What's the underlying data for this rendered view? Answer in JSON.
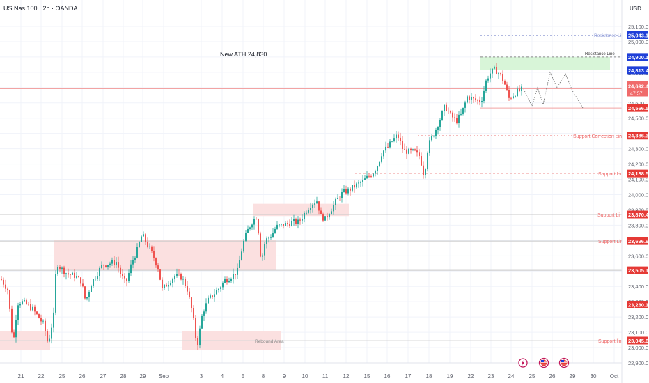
{
  "header": {
    "title": "US Nas 100 · 2h · OANDA",
    "currency": "USD"
  },
  "colors": {
    "up": "#26a69a",
    "down": "#ef5350",
    "zone_red": "#fbe0e0",
    "zone_green": "#d8f5d8",
    "label_red": "#e53935",
    "label_blue": "#1e3fd8",
    "label_price": "#f06b6b",
    "grid": "#f0f3fa",
    "axis_text": "#5d606b",
    "line_red": "#f2a3a3",
    "line_blue": "#b0b8e0"
  },
  "annotations": {
    "ath": "New ATH  24,830",
    "rebound": "Rebound Area",
    "resistance_upper": "Resistance Line",
    "resistance_lower": "Resistance Line",
    "support_correction": "Support Correction Line",
    "support_1": "Support Line",
    "support_2": "Support Line",
    "support_3": "Support Line",
    "support_4": "Support line"
  },
  "price_tags": {
    "r1": "25,043.1",
    "r2": "24,900.1",
    "r3": "24,813.4",
    "current": "24,692.4",
    "countdown": "47:57",
    "s0": "24,566.5",
    "s1": "24,386.3",
    "s2": "24,138.5",
    "s3": "23,870.4",
    "s4": "23,696.6",
    "s5": "23,505.1",
    "s6": "23,280.1",
    "s7": "23,045.6"
  },
  "events": [
    "lightning-icon",
    "us-flag-icon",
    "us-flag-icon"
  ],
  "chart_data": {
    "type": "candlestick",
    "instrument": "US Nas 100",
    "timeframe": "2h",
    "ylim": [
      22870,
      25260
    ],
    "yticks": [
      "25,100.0",
      "25,000.0",
      "24,900.0",
      "24,800.0",
      "24,700.0",
      "24,600.0",
      "24,500.0",
      "24,400.0",
      "24,300.0",
      "24,200.0",
      "24,100.0",
      "24,000.0",
      "23,900.0",
      "23,800.0",
      "23,700.0",
      "23,600.0",
      "23,500.0",
      "23,400.0",
      "23,300.0",
      "23,200.0",
      "23,100.0",
      "23,000.0",
      "22,900.0"
    ],
    "xticks": [
      "21",
      "22",
      "25",
      "26",
      "27",
      "28",
      "29",
      "Sep",
      "3",
      "4",
      "5",
      "8",
      "9",
      "10",
      "11",
      "12",
      "15",
      "16",
      "17",
      "18",
      "19",
      "22",
      "23",
      "24",
      "25",
      "26",
      "29",
      "30",
      "Oct"
    ],
    "levels": {
      "resistance_upper": 25043.1,
      "resistance_lower": 24900.1,
      "r3": 24813.4,
      "current": 24692.4,
      "s0": 24566.5,
      "s1": 24386.3,
      "s2": 24138.5,
      "s3": 23870.4,
      "s4": 23696.6,
      "s5": 23505.1,
      "s6": 23280.1,
      "s7": 23045.6
    },
    "path": [
      [
        0,
        23450
      ],
      [
        10,
        23380
      ],
      [
        18,
        23020
      ],
      [
        24,
        23290
      ],
      [
        30,
        23300
      ],
      [
        38,
        23280
      ],
      [
        46,
        23250
      ],
      [
        54,
        23200
      ],
      [
        62,
        23150
      ],
      [
        68,
        23020
      ],
      [
        76,
        23210
      ],
      [
        80,
        23560
      ],
      [
        86,
        23520
      ],
      [
        96,
        23480
      ],
      [
        106,
        23470
      ],
      [
        116,
        23430
      ],
      [
        122,
        23300
      ],
      [
        130,
        23420
      ],
      [
        138,
        23480
      ],
      [
        146,
        23540
      ],
      [
        156,
        23550
      ],
      [
        166,
        23560
      ],
      [
        174,
        23460
      ],
      [
        180,
        23420
      ],
      [
        188,
        23550
      ],
      [
        196,
        23640
      ],
      [
        203,
        23740
      ],
      [
        210,
        23680
      ],
      [
        218,
        23610
      ],
      [
        226,
        23520
      ],
      [
        232,
        23380
      ],
      [
        240,
        23420
      ],
      [
        250,
        23470
      ],
      [
        260,
        23460
      ],
      [
        268,
        23380
      ],
      [
        276,
        23210
      ],
      [
        282,
        23000
      ],
      [
        290,
        23230
      ],
      [
        298,
        23310
      ],
      [
        306,
        23350
      ],
      [
        314,
        23390
      ],
      [
        322,
        23440
      ],
      [
        330,
        23460
      ],
      [
        340,
        23500
      ],
      [
        348,
        23680
      ],
      [
        356,
        23780
      ],
      [
        362,
        23830
      ],
      [
        368,
        23860
      ],
      [
        374,
        23560
      ],
      [
        380,
        23700
      ],
      [
        388,
        23730
      ],
      [
        396,
        23790
      ],
      [
        404,
        23800
      ],
      [
        412,
        23810
      ],
      [
        420,
        23820
      ],
      [
        428,
        23820
      ],
      [
        438,
        23890
      ],
      [
        446,
        23940
      ],
      [
        454,
        23960
      ],
      [
        460,
        23860
      ],
      [
        466,
        23840
      ],
      [
        474,
        23900
      ],
      [
        482,
        23960
      ],
      [
        490,
        24010
      ],
      [
        500,
        24030
      ],
      [
        510,
        24060
      ],
      [
        518,
        24080
      ],
      [
        526,
        24110
      ],
      [
        534,
        24140
      ],
      [
        540,
        24180
      ],
      [
        548,
        24280
      ],
      [
        556,
        24310
      ],
      [
        562,
        24350
      ],
      [
        570,
        24390
      ],
      [
        578,
        24290
      ],
      [
        586,
        24280
      ],
      [
        594,
        24280
      ],
      [
        602,
        24250
      ],
      [
        608,
        24120
      ],
      [
        614,
        24320
      ],
      [
        622,
        24400
      ],
      [
        630,
        24480
      ],
      [
        638,
        24580
      ],
      [
        646,
        24520
      ],
      [
        654,
        24480
      ],
      [
        662,
        24530
      ],
      [
        670,
        24640
      ],
      [
        680,
        24620
      ],
      [
        690,
        24610
      ],
      [
        698,
        24760
      ],
      [
        704,
        24800
      ],
      [
        710,
        24820
      ],
      [
        718,
        24780
      ],
      [
        724,
        24720
      ],
      [
        730,
        24630
      ],
      [
        738,
        24660
      ],
      [
        744,
        24680
      ],
      [
        750,
        24690
      ]
    ],
    "projection": [
      [
        752,
        24690
      ],
      [
        764,
        24580
      ],
      [
        772,
        24700
      ],
      [
        780,
        24590
      ],
      [
        790,
        24800
      ],
      [
        800,
        24700
      ],
      [
        812,
        24790
      ],
      [
        822,
        24680
      ],
      [
        838,
        24560
      ]
    ]
  }
}
